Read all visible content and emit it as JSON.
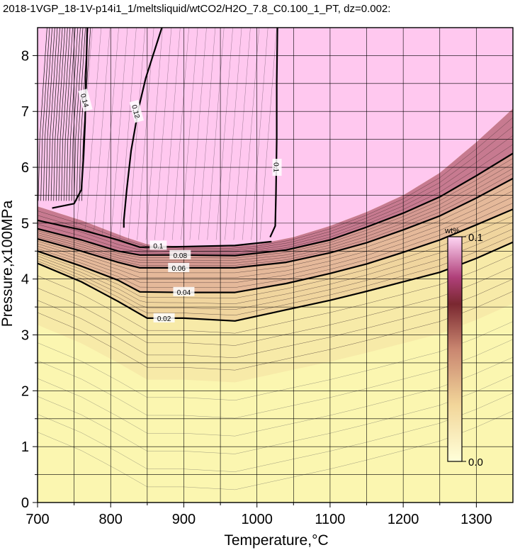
{
  "chart_data": {
    "type": "heatmap",
    "title": "2018-1VGP_18-1V-p14i1_1/meltsliquid/wtCO2/H2O_7.8_C0.100_1_PT, dz=0.002:",
    "xlabel": "Temperature,°C",
    "ylabel": "Pressure,x100MPa",
    "xlim": [
      700,
      1350
    ],
    "ylim": [
      0,
      8.5
    ],
    "x_ticks": [
      700,
      800,
      900,
      1000,
      1100,
      1200,
      1300
    ],
    "y_ticks": [
      0,
      1,
      2,
      3,
      4,
      5,
      6,
      7,
      8
    ],
    "grid": true,
    "colorbar": {
      "unit": "wt%",
      "min_label": "0.0",
      "max_label": "0.1",
      "min": 0.0,
      "max": 0.1,
      "placement": "right-inside"
    },
    "saturation_boundary": [
      {
        "x": 700,
        "y": 5.3
      },
      {
        "x": 760,
        "y": 5.05
      },
      {
        "x": 820,
        "y": 4.75
      },
      {
        "x": 850,
        "y": 4.62
      },
      {
        "x": 900,
        "y": 4.58
      },
      {
        "x": 960,
        "y": 4.58
      },
      {
        "x": 1000,
        "y": 4.62
      },
      {
        "x": 1050,
        "y": 4.75
      },
      {
        "x": 1100,
        "y": 4.95
      },
      {
        "x": 1150,
        "y": 5.2
      },
      {
        "x": 1200,
        "y": 5.5
      },
      {
        "x": 1250,
        "y": 5.9
      },
      {
        "x": 1300,
        "y": 6.45
      },
      {
        "x": 1350,
        "y": 7.05
      }
    ],
    "contours": [
      {
        "label": "0.1",
        "label_at": {
          "x": 865,
          "y": 4.6
        },
        "points": [
          {
            "x": 700,
            "y": 5.05
          },
          {
            "x": 760,
            "y": 4.88
          },
          {
            "x": 810,
            "y": 4.7
          },
          {
            "x": 840,
            "y": 4.57
          },
          {
            "x": 900,
            "y": 4.58
          },
          {
            "x": 970,
            "y": 4.6
          },
          {
            "x": 1020,
            "y": 4.67
          }
        ]
      },
      {
        "label": "0.08",
        "label_at": {
          "x": 895,
          "y": 4.43
        },
        "points": [
          {
            "x": 700,
            "y": 4.9
          },
          {
            "x": 760,
            "y": 4.7
          },
          {
            "x": 810,
            "y": 4.5
          },
          {
            "x": 840,
            "y": 4.43
          },
          {
            "x": 900,
            "y": 4.43
          },
          {
            "x": 970,
            "y": 4.42
          },
          {
            "x": 1040,
            "y": 4.52
          },
          {
            "x": 1100,
            "y": 4.7
          },
          {
            "x": 1150,
            "y": 4.93
          },
          {
            "x": 1200,
            "y": 5.18
          },
          {
            "x": 1250,
            "y": 5.47
          },
          {
            "x": 1300,
            "y": 5.85
          },
          {
            "x": 1350,
            "y": 6.25
          }
        ]
      },
      {
        "label": "0.06",
        "label_at": {
          "x": 893,
          "y": 4.2
        },
        "points": [
          {
            "x": 700,
            "y": 4.72
          },
          {
            "x": 760,
            "y": 4.5
          },
          {
            "x": 810,
            "y": 4.3
          },
          {
            "x": 840,
            "y": 4.2
          },
          {
            "x": 900,
            "y": 4.2
          },
          {
            "x": 970,
            "y": 4.2
          },
          {
            "x": 1040,
            "y": 4.3
          },
          {
            "x": 1100,
            "y": 4.47
          },
          {
            "x": 1150,
            "y": 4.65
          },
          {
            "x": 1200,
            "y": 4.88
          },
          {
            "x": 1250,
            "y": 5.13
          },
          {
            "x": 1300,
            "y": 5.45
          },
          {
            "x": 1350,
            "y": 5.8
          }
        ]
      },
      {
        "label": "0.04",
        "label_at": {
          "x": 900,
          "y": 3.77
        },
        "points": [
          {
            "x": 700,
            "y": 4.5
          },
          {
            "x": 760,
            "y": 4.23
          },
          {
            "x": 810,
            "y": 3.98
          },
          {
            "x": 840,
            "y": 3.77
          },
          {
            "x": 900,
            "y": 3.76
          },
          {
            "x": 970,
            "y": 3.76
          },
          {
            "x": 1040,
            "y": 3.92
          },
          {
            "x": 1100,
            "y": 4.1
          },
          {
            "x": 1150,
            "y": 4.27
          },
          {
            "x": 1200,
            "y": 4.48
          },
          {
            "x": 1250,
            "y": 4.7
          },
          {
            "x": 1300,
            "y": 4.97
          },
          {
            "x": 1350,
            "y": 5.25
          }
        ]
      },
      {
        "label": "0.02",
        "label_at": {
          "x": 873,
          "y": 3.3
        },
        "points": [
          {
            "x": 700,
            "y": 4.28
          },
          {
            "x": 760,
            "y": 3.95
          },
          {
            "x": 810,
            "y": 3.6
          },
          {
            "x": 850,
            "y": 3.3
          },
          {
            "x": 900,
            "y": 3.3
          },
          {
            "x": 970,
            "y": 3.25
          },
          {
            "x": 1040,
            "y": 3.45
          },
          {
            "x": 1100,
            "y": 3.62
          },
          {
            "x": 1150,
            "y": 3.78
          },
          {
            "x": 1200,
            "y": 3.95
          },
          {
            "x": 1250,
            "y": 4.12
          },
          {
            "x": 1300,
            "y": 4.37
          },
          {
            "x": 1350,
            "y": 4.66
          }
        ]
      },
      {
        "label": "0.14",
        "label_at": {
          "x": 765,
          "y": 7.2
        },
        "points": [
          {
            "x": 768,
            "y": 8.5
          },
          {
            "x": 766,
            "y": 7.5
          },
          {
            "x": 765,
            "y": 6.8
          },
          {
            "x": 763,
            "y": 6.2
          },
          {
            "x": 760,
            "y": 5.6
          },
          {
            "x": 750,
            "y": 5.35
          },
          {
            "x": 720,
            "y": 5.27
          }
        ]
      },
      {
        "label": "0.12",
        "label_at": {
          "x": 835,
          "y": 7.0
        },
        "points": [
          {
            "x": 870,
            "y": 8.5
          },
          {
            "x": 848,
            "y": 7.6
          },
          {
            "x": 838,
            "y": 7.05
          },
          {
            "x": 828,
            "y": 6.3
          },
          {
            "x": 822,
            "y": 5.6
          },
          {
            "x": 818,
            "y": 5.05
          },
          {
            "x": 818,
            "y": 4.92
          }
        ]
      },
      {
        "label": "0.1",
        "label_at": {
          "x": 1027,
          "y": 6.0
        },
        "points": [
          {
            "x": 1028,
            "y": 8.5
          },
          {
            "x": 1027,
            "y": 7.5
          },
          {
            "x": 1027,
            "y": 6.5
          },
          {
            "x": 1026,
            "y": 5.5
          },
          {
            "x": 1025,
            "y": 4.95
          },
          {
            "x": 1018,
            "y": 4.75
          }
        ]
      }
    ]
  }
}
